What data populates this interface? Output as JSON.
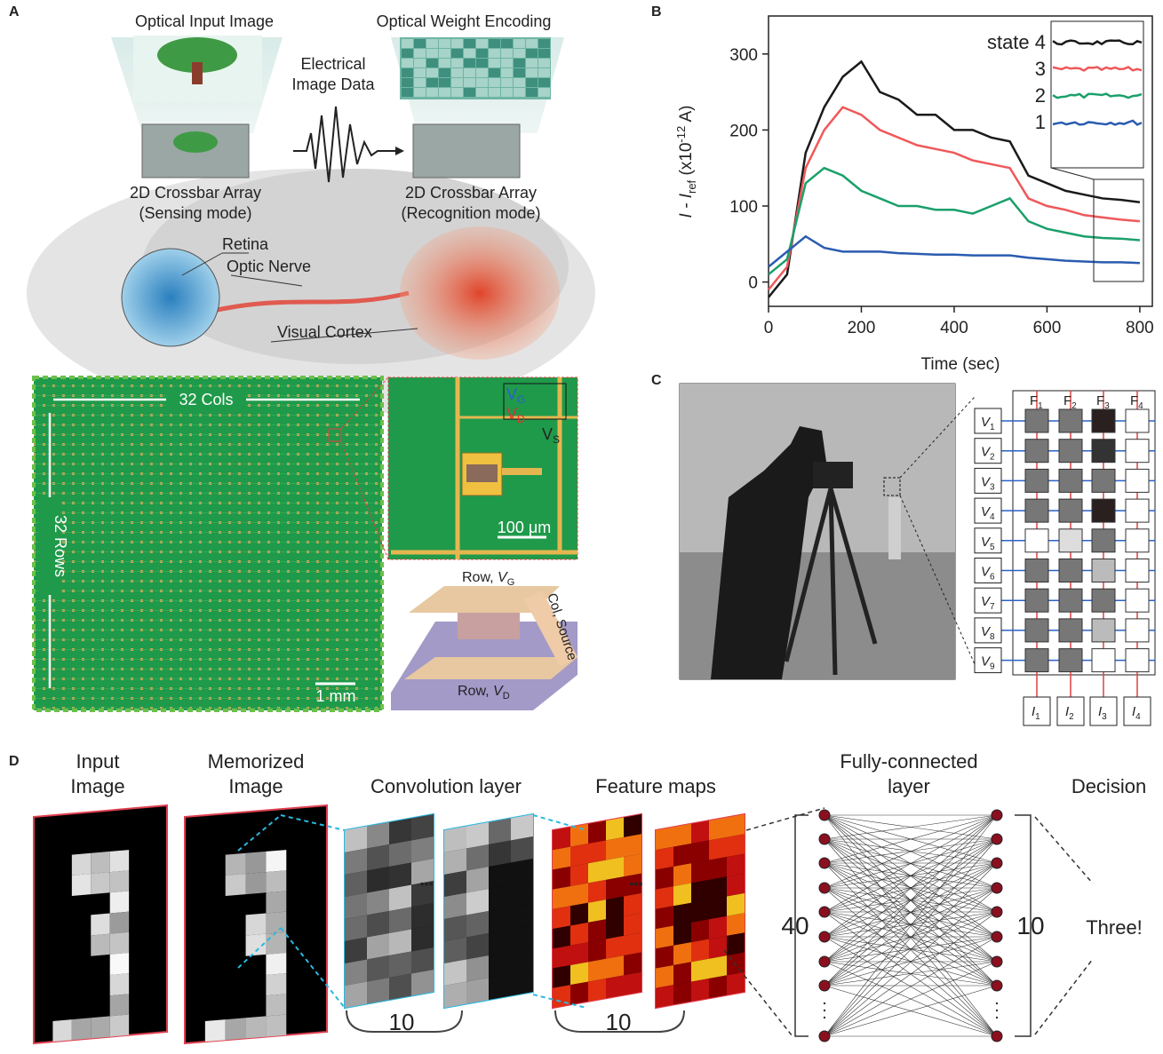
{
  "panel_labels": [
    "A",
    "B",
    "C",
    "D"
  ],
  "panel_a": {
    "optical_input_image": "Optical Input Image",
    "optical_weight_encoding": "Optical Weight Encoding",
    "electrical_image_data": [
      "Electrical",
      "Image Data"
    ],
    "sensing_array": [
      "2D Crossbar Array",
      "(Sensing mode)"
    ],
    "recognition_array": [
      "2D Crossbar Array",
      "(Recognition mode)"
    ],
    "retina": "Retina",
    "optic_nerve": "Optic Nerve",
    "visual_cortex": "Visual Cortex",
    "cols": "32 Cols",
    "rows": "32 Rows",
    "scale_mm": "1 mm",
    "scale_um": "100 μm",
    "vg": [
      "V",
      "G"
    ],
    "vd": [
      "V",
      "D"
    ],
    "vs": [
      "V",
      "S"
    ],
    "row_vg": [
      "Row, ",
      "V",
      "G"
    ],
    "col_source": "Col, Source",
    "row_vd": [
      "Row, ",
      "V",
      "D"
    ]
  },
  "chart_data": {
    "type": "line",
    "x_label": "Time (sec)",
    "y_label": [
      "I - I",
      "ref",
      " (x10",
      "-12",
      " A)"
    ],
    "x": [
      0,
      40,
      80,
      120,
      160,
      200,
      240,
      280,
      320,
      360,
      400,
      440,
      480,
      520,
      560,
      600,
      640,
      680,
      720,
      760,
      800
    ],
    "series": [
      {
        "name": "state 4",
        "color": "#1a1a1a",
        "values": [
          -20,
          10,
          170,
          230,
          270,
          290,
          250,
          240,
          220,
          220,
          200,
          200,
          190,
          185,
          140,
          130,
          120,
          115,
          110,
          108,
          105
        ]
      },
      {
        "name": "3",
        "color": "#f0585a",
        "values": [
          -10,
          20,
          150,
          200,
          230,
          220,
          200,
          190,
          180,
          175,
          170,
          160,
          155,
          150,
          110,
          100,
          95,
          88,
          85,
          82,
          80
        ]
      },
      {
        "name": "2",
        "color": "#1aa06a",
        "values": [
          10,
          30,
          130,
          150,
          140,
          120,
          110,
          100,
          100,
          95,
          95,
          90,
          100,
          110,
          80,
          70,
          65,
          60,
          58,
          57,
          55
        ]
      },
      {
        "name": "1",
        "color": "#2a5cb0",
        "values": [
          20,
          40,
          60,
          45,
          40,
          40,
          40,
          38,
          37,
          36,
          36,
          35,
          35,
          35,
          32,
          30,
          28,
          27,
          26,
          26,
          25
        ]
      }
    ],
    "xlim": [
      0,
      827
    ],
    "ylim": [
      -32,
      350
    ],
    "xticks": [
      0,
      200,
      400,
      600,
      800
    ],
    "yticks": [
      0,
      100,
      200,
      300
    ],
    "grid": false
  },
  "panel_c": {
    "v_labels": [
      [
        "V",
        "1"
      ],
      [
        "V",
        "2"
      ],
      [
        "V",
        "3"
      ],
      [
        "V",
        "4"
      ],
      [
        "V",
        "5"
      ],
      [
        "V",
        "6"
      ],
      [
        "V",
        "7"
      ],
      [
        "V",
        "8"
      ],
      [
        "V",
        "9"
      ]
    ],
    "f_labels": [
      [
        "F",
        "1"
      ],
      [
        "F",
        "2"
      ],
      [
        "F",
        "3"
      ],
      [
        "F",
        "4"
      ]
    ],
    "i_labels": [
      [
        "I",
        "1"
      ],
      [
        "I",
        "2"
      ],
      [
        "I",
        "3"
      ],
      [
        "I",
        "4"
      ]
    ]
  },
  "panel_d": {
    "input_image": [
      "Input",
      "Image"
    ],
    "memorized_image": [
      "Memorized",
      "Image"
    ],
    "convolution_layer": "Convolution layer",
    "feature_maps": "Feature maps",
    "fully_connected": [
      "Fully-connected",
      "layer"
    ],
    "decision": "Decision",
    "conv_count": "10",
    "map_count": "10",
    "input_nodes": "40",
    "output_nodes": "10",
    "result": "Three!",
    "ellipsis": "•••"
  }
}
